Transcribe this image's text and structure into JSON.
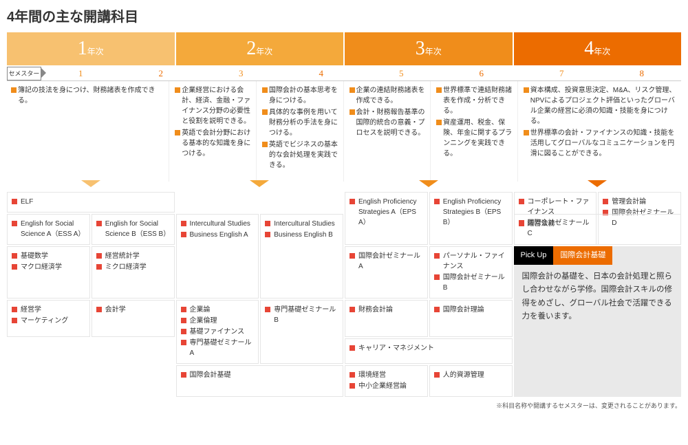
{
  "title": "4年間の主な開講科目",
  "colors": {
    "y1": "#f7c170",
    "y2": "#f4a93b",
    "y3": "#f08d1b",
    "y4": "#ec6c00",
    "s1": "#f08d1b",
    "s2": "#ec6c00",
    "bullet": "#f08d1b",
    "course_bullet": "#e74536",
    "arrow1": "#f7c170",
    "arrow2": "#f4a93b",
    "arrow3": "#f08d1b",
    "arrow4": "#ec6c00",
    "pickup_title_bg": "#ec6c00"
  },
  "years": [
    {
      "num": "1",
      "suf": "年次"
    },
    {
      "num": "2",
      "suf": "年次"
    },
    {
      "num": "3",
      "suf": "年次"
    },
    {
      "num": "4",
      "suf": "年次"
    }
  ],
  "semester_label": "セメスター",
  "semesters": [
    "1",
    "2",
    "3",
    "4",
    "5",
    "6",
    "7",
    "8"
  ],
  "desc": {
    "y1": [
      "簿記の技法を身につけ、財務諸表を作成できる。"
    ],
    "y2s3": [
      "企業経営における会計、経済、金融・ファイナンス分野の必要性と役割を説明できる。",
      "英語で会計分野における基本的な知識を身につける。"
    ],
    "y2s4": [
      "国際会計の基本思考を身につける。",
      "具体的な事例を用いて財務分析の手法を身につける。",
      "英語でビジネスの基本的な会計処理を実践できる。"
    ],
    "y3s5": [
      "企業の連結財務諸表を作成できる。",
      "会計・財務報告基準の国際的統合の意義・プロセスを説明できる。"
    ],
    "y3s6": [
      "世界標準で連結財務諸表を作成・分析できる。",
      "資産運用、税金、保険、年金に関するプランニングを実践できる。"
    ],
    "y4": [
      "資本構成、投資意思決定、M&A、リスク管理、NPVによるプロジェクト評価といったグローバル企業の経営に必須の知識・技能を身につける。",
      "世界標準の会計・ファイナンスの知識・技能を活用してグローバルなコミュニケーションを円滑に図ることができる。"
    ]
  },
  "courses": {
    "r1c1": [
      "ELF"
    ],
    "r1c5": [
      "English Proficiency Strategies A（EPS A）"
    ],
    "r1c6": [
      "English Proficiency Strategies B（EPS B）"
    ],
    "r1c7": [
      "コーポレート・ファイナンス",
      "国際会計ゼミナールC"
    ],
    "r1c8": [
      "管理会計論",
      "国際会計ゼミナールD"
    ],
    "r2c1": [
      "English for Social Science A（ESS A）"
    ],
    "r2c2": [
      "English for Social Science B（ESS B）"
    ],
    "r2c3": [
      "Intercultural Studies",
      "Business English A"
    ],
    "r2c4": [
      "Intercultural Studies",
      "Business English B"
    ],
    "r2c5": [
      "国際会計ゼミナールA"
    ],
    "r2c6": [
      "パーソナル・ファイナンス",
      "国際会計ゼミナールB"
    ],
    "r2c7": [
      "経営法務"
    ],
    "r3c1": [
      "基礎数学",
      "マクロ経済学"
    ],
    "r3c2": [
      "経営統計学",
      "ミクロ経済学"
    ],
    "r4c1": [
      "経営学",
      "マーケティング"
    ],
    "r4c2": [
      "会計学"
    ],
    "r4c3": [
      "企業論",
      "企業倫理",
      "基礎ファイナンス",
      "専門基礎ゼミナールA"
    ],
    "r4c4": [
      "専門基礎ゼミナールB"
    ],
    "r4c5": [
      "財務会計論"
    ],
    "r4c6": [
      "国際会計理論"
    ],
    "r5c5": [
      "キャリア・マネジメント"
    ],
    "r6c3": [
      "国際会計基礎"
    ],
    "r6c5": [
      "環境経営",
      "中小企業経営論"
    ],
    "r6c6": [
      "人的資源管理"
    ]
  },
  "pickup": {
    "badge": "Pick Up",
    "title": "国際会計基礎",
    "body": "国際会計の基礎を、日本の会計処理と照らし合わせながら学修。国際会計スキルの修得をめざし、グローバル社会で活躍できる力を養います。"
  },
  "footnote": "※科目名称や開講するセメスターは、変更されることがあります。"
}
